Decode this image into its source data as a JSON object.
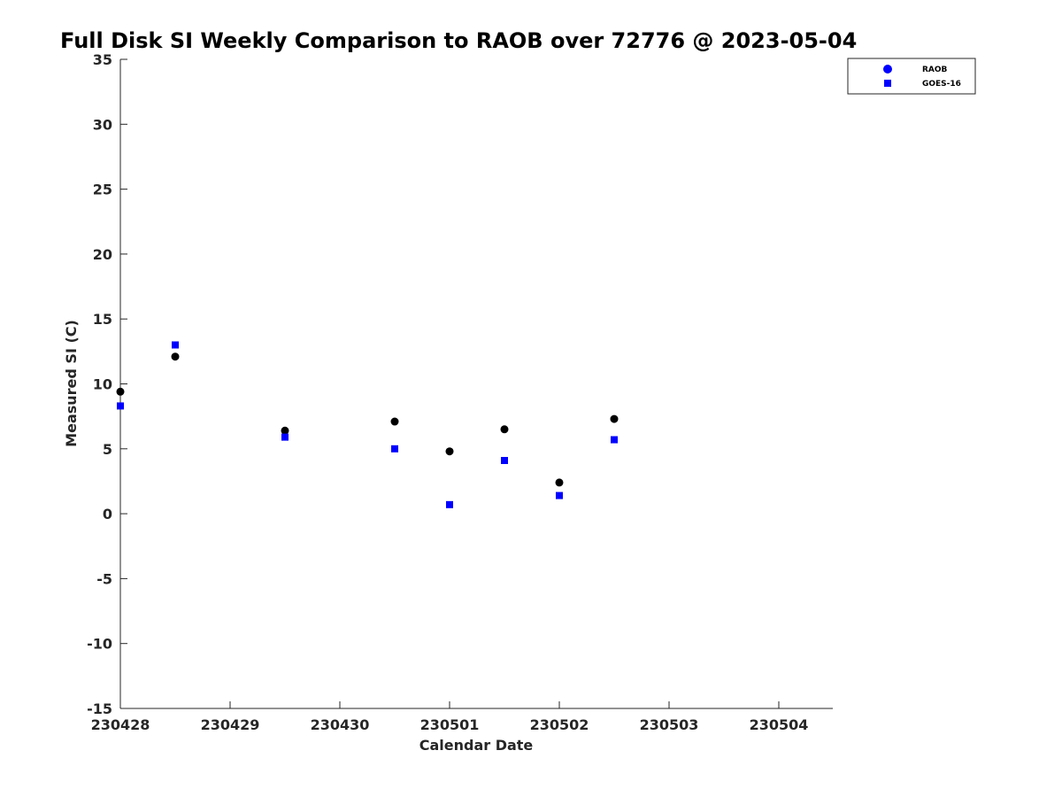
{
  "chart_data": {
    "type": "scatter",
    "title": "Full Disk SI Weekly Comparison to RAOB over 72776 @ 2023-05-04",
    "xlabel": "Calendar Date",
    "ylabel": "Measured SI (C)",
    "x_ticks": [
      "230428",
      "230429",
      "230430",
      "230501",
      "230502",
      "230503",
      "230504"
    ],
    "y_ticks": [
      "35",
      "30",
      "25",
      "20",
      "15",
      "10",
      "5",
      "0",
      "-5",
      "-10",
      "-15"
    ],
    "xlim": [
      "2023-04-28 00:00",
      "2023-05-04 12:00"
    ],
    "ylim": [
      -15,
      35
    ],
    "grid": false,
    "legend_position": "top-right",
    "series": [
      {
        "name": "RAOB",
        "marker": "circle",
        "color": "#000000",
        "legend_color": "#0000ff",
        "points": [
          {
            "x": "2023-04-28 00:00",
            "y": 9.4
          },
          {
            "x": "2023-04-28 12:00",
            "y": 12.1
          },
          {
            "x": "2023-04-29 12:00",
            "y": 6.4
          },
          {
            "x": "2023-04-30 12:00",
            "y": 7.1
          },
          {
            "x": "2023-05-01 00:00",
            "y": 4.8
          },
          {
            "x": "2023-05-01 12:00",
            "y": 6.5
          },
          {
            "x": "2023-05-02 00:00",
            "y": 2.4
          },
          {
            "x": "2023-05-02 12:00",
            "y": 7.3
          }
        ]
      },
      {
        "name": "GOES-16",
        "marker": "square",
        "color": "#0000ff",
        "legend_color": "#0000ff",
        "points": [
          {
            "x": "2023-04-28 00:00",
            "y": 8.3
          },
          {
            "x": "2023-04-28 12:00",
            "y": 13.0
          },
          {
            "x": "2023-04-29 12:00",
            "y": 5.9
          },
          {
            "x": "2023-04-30 12:00",
            "y": 5.0
          },
          {
            "x": "2023-05-01 00:00",
            "y": 0.7
          },
          {
            "x": "2023-05-01 12:00",
            "y": 4.1
          },
          {
            "x": "2023-05-02 00:00",
            "y": 1.4
          },
          {
            "x": "2023-05-02 12:00",
            "y": 5.7
          }
        ]
      }
    ]
  }
}
